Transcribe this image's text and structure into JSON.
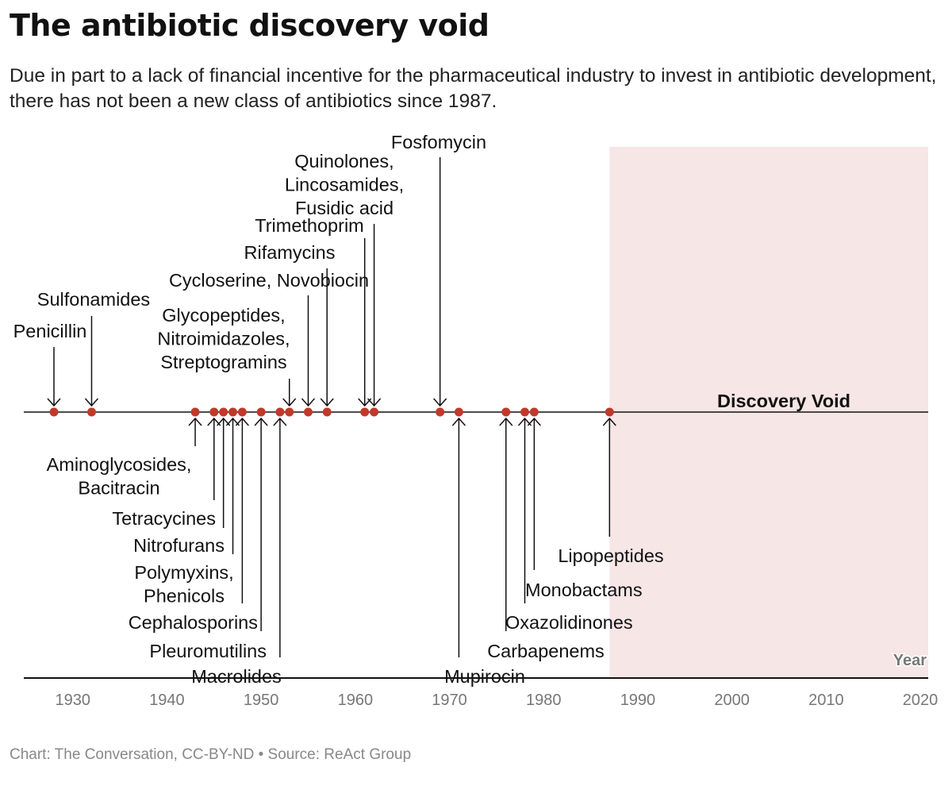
{
  "title": "The antibiotic discovery void",
  "subtitle": "Due in part to a lack of financial incentive for the pharmaceutical industry to invest in antibiotic development, there has not been a new class of antibiotics since 1987.",
  "footer": "Chart: The Conversation, CC-BY-ND • Source: ReAct Group",
  "chart_data": {
    "type": "timeline",
    "xlabel": "Year",
    "xlim": [
      1925,
      2021
    ],
    "xticks": [
      1930,
      1940,
      1950,
      1960,
      1970,
      1980,
      1990,
      2000,
      2010,
      2020
    ],
    "grid": false,
    "colors": {
      "dot": "#c0392b",
      "void_shade": "#f7e6e6",
      "line": "#111111"
    },
    "void_region": {
      "label": "Discovery Void",
      "start": 1987,
      "end": 2021
    },
    "events": [
      {
        "year": 1928,
        "label": [
          "Penicillin"
        ],
        "side": "above"
      },
      {
        "year": 1932,
        "label": [
          "Sulfonamides"
        ],
        "side": "above"
      },
      {
        "year": 1943,
        "label": [
          "Aminoglycosides,",
          "Bacitracin"
        ],
        "side": "below"
      },
      {
        "year": 1945,
        "label": [
          "Tetracycines"
        ],
        "side": "below"
      },
      {
        "year": 1946,
        "label": [
          "Nitrofurans"
        ],
        "side": "below"
      },
      {
        "year": 1947,
        "label": [
          "Polymyxins,",
          "Phenicols"
        ],
        "side": "below"
      },
      {
        "year": 1948,
        "label": [
          "Cephalosporins"
        ],
        "side": "below"
      },
      {
        "year": 1950,
        "label": [
          "Pleuromutilins"
        ],
        "side": "below"
      },
      {
        "year": 1952,
        "label": [
          "Macrolides"
        ],
        "side": "below"
      },
      {
        "year": 1953,
        "label": [
          "Glycopeptides,",
          "Nitroimidazoles,",
          "Streptogramins"
        ],
        "side": "above"
      },
      {
        "year": 1955,
        "label": [
          "Cycloserine, Novobiocin"
        ],
        "side": "above"
      },
      {
        "year": 1957,
        "label": [
          "Rifamycins"
        ],
        "side": "above"
      },
      {
        "year": 1961,
        "label": [
          "Trimethoprim"
        ],
        "side": "above"
      },
      {
        "year": 1962,
        "label": [
          "Quinolones,",
          "Lincosamides,",
          "Fusidic acid"
        ],
        "side": "above"
      },
      {
        "year": 1969,
        "label": [
          "Fosfomycin"
        ],
        "side": "above"
      },
      {
        "year": 1971,
        "label": [
          "Mupirocin"
        ],
        "side": "below"
      },
      {
        "year": 1976,
        "label": [
          "Carbapenems"
        ],
        "side": "below"
      },
      {
        "year": 1978,
        "label": [
          "Oxazolidinones"
        ],
        "side": "below"
      },
      {
        "year": 1979,
        "label": [
          "Monobactams"
        ],
        "side": "below"
      },
      {
        "year": 1987,
        "label": [
          "Lipopeptides"
        ],
        "side": "below"
      }
    ]
  }
}
